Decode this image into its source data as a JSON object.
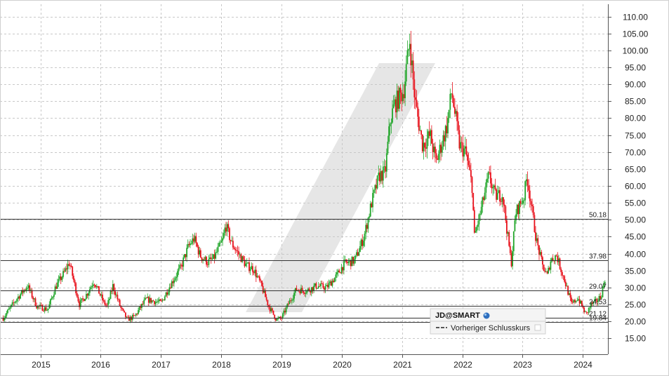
{
  "chart_data": {
    "type": "candlestick",
    "symbol": "JD@SMART",
    "x_range": [
      "2014-05-01",
      "2024-06-01"
    ],
    "ylim": [
      10,
      112
    ],
    "y_ticks": [
      "15.00",
      "20.00",
      "25.00",
      "30.00",
      "35.00",
      "40.00",
      "45.00",
      "50.00",
      "55.00",
      "60.00",
      "65.00",
      "70.00",
      "75.00",
      "80.00",
      "85.00",
      "90.00",
      "95.00",
      "100.00",
      "105.00",
      "110.00"
    ],
    "x_ticks": [
      "2015",
      "2016",
      "2017",
      "2018",
      "2019",
      "2020",
      "2021",
      "2022",
      "2023",
      "2024"
    ],
    "grid": true,
    "colors": {
      "up": "#21a62a",
      "down": "#e8111b",
      "grid": "#c8c8c8",
      "level_line": "#333333",
      "watermark": "#e6e6e6"
    },
    "levels": [
      {
        "label": "50.18",
        "value": 50.18
      },
      {
        "label": "37.98",
        "value": 37.98
      },
      {
        "label": "29.07",
        "value": 29.07
      },
      {
        "label": "24.53",
        "value": 24.53
      },
      {
        "label": "21.12",
        "value": 21.12
      },
      {
        "label": "19.84",
        "value": 19.84
      }
    ],
    "price_path": [
      [
        "2014-05-20",
        21.0
      ],
      [
        "2014-08-15",
        27.0
      ],
      [
        "2014-10-15",
        30.5
      ],
      [
        "2014-12-10",
        24.5
      ],
      [
        "2015-02-15",
        23.5
      ],
      [
        "2015-04-01",
        30.0
      ],
      [
        "2015-06-01",
        35.0
      ],
      [
        "2015-06-25",
        37.5
      ],
      [
        "2015-08-25",
        25.0
      ],
      [
        "2015-10-15",
        28.5
      ],
      [
        "2015-11-20",
        32.0
      ],
      [
        "2016-01-20",
        25.5
      ],
      [
        "2016-02-10",
        24.5
      ],
      [
        "2016-03-15",
        30.5
      ],
      [
        "2016-05-01",
        24.0
      ],
      [
        "2016-06-10",
        20.5
      ],
      [
        "2016-07-25",
        21.5
      ],
      [
        "2016-10-01",
        26.5
      ],
      [
        "2017-01-01",
        25.5
      ],
      [
        "2017-03-01",
        31.0
      ],
      [
        "2017-05-01",
        36.0
      ],
      [
        "2017-06-15",
        42.0
      ],
      [
        "2017-07-20",
        44.5
      ],
      [
        "2017-08-25",
        39.5
      ],
      [
        "2017-10-10",
        37.5
      ],
      [
        "2017-11-15",
        38.5
      ],
      [
        "2018-01-10",
        44.0
      ],
      [
        "2018-01-28",
        48.5
      ],
      [
        "2018-03-05",
        43.0
      ],
      [
        "2018-04-15",
        40.0
      ],
      [
        "2018-06-01",
        36.5
      ],
      [
        "2018-07-15",
        35.5
      ],
      [
        "2018-09-01",
        30.5
      ],
      [
        "2018-10-15",
        24.5
      ],
      [
        "2018-12-01",
        20.5
      ],
      [
        "2019-01-01",
        21.0
      ],
      [
        "2019-02-15",
        25.5
      ],
      [
        "2019-04-01",
        29.5
      ],
      [
        "2019-06-01",
        29.0
      ],
      [
        "2019-08-01",
        30.5
      ],
      [
        "2019-10-01",
        30.0
      ],
      [
        "2019-12-01",
        33.5
      ],
      [
        "2020-01-15",
        37.0
      ],
      [
        "2020-03-20",
        38.0
      ],
      [
        "2020-05-15",
        45.0
      ],
      [
        "2020-06-30",
        55.0
      ],
      [
        "2020-08-15",
        63.0
      ],
      [
        "2020-09-20",
        64.0
      ],
      [
        "2020-10-20",
        79.0
      ],
      [
        "2020-11-15",
        84.0
      ],
      [
        "2021-01-10",
        88.0
      ],
      [
        "2021-02-16",
        103.0
      ],
      [
        "2021-03-20",
        85.0
      ],
      [
        "2021-05-05",
        72.0
      ],
      [
        "2021-06-20",
        75.0
      ],
      [
        "2021-07-25",
        67.0
      ],
      [
        "2021-09-01",
        73.0
      ],
      [
        "2021-10-01",
        78.0
      ],
      [
        "2021-10-28",
        88.0
      ],
      [
        "2021-12-15",
        72.0
      ],
      [
        "2022-01-20",
        70.0
      ],
      [
        "2022-03-01",
        60.0
      ],
      [
        "2022-03-15",
        45.0
      ],
      [
        "2022-04-20",
        52.0
      ],
      [
        "2022-06-10",
        63.0
      ],
      [
        "2022-07-20",
        57.0
      ],
      [
        "2022-09-01",
        57.5
      ],
      [
        "2022-10-24",
        37.0
      ],
      [
        "2022-11-20",
        52.0
      ],
      [
        "2023-01-10",
        57.0
      ],
      [
        "2023-01-28",
        63.0
      ],
      [
        "2023-03-01",
        52.0
      ],
      [
        "2023-03-25",
        44.0
      ],
      [
        "2023-05-01",
        36.5
      ],
      [
        "2023-05-30",
        33.5
      ],
      [
        "2023-06-20",
        38.0
      ],
      [
        "2023-07-25",
        39.5
      ],
      [
        "2023-09-10",
        32.5
      ],
      [
        "2023-10-25",
        25.0
      ],
      [
        "2023-12-01",
        27.0
      ],
      [
        "2024-01-20",
        22.0
      ],
      [
        "2024-02-20",
        25.0
      ],
      [
        "2024-03-25",
        26.0
      ],
      [
        "2024-04-20",
        27.5
      ],
      [
        "2024-05-20",
        34.0
      ]
    ]
  },
  "legend": {
    "title": "JD@SMART",
    "entry": "Vorheriger Schlusskurs"
  }
}
